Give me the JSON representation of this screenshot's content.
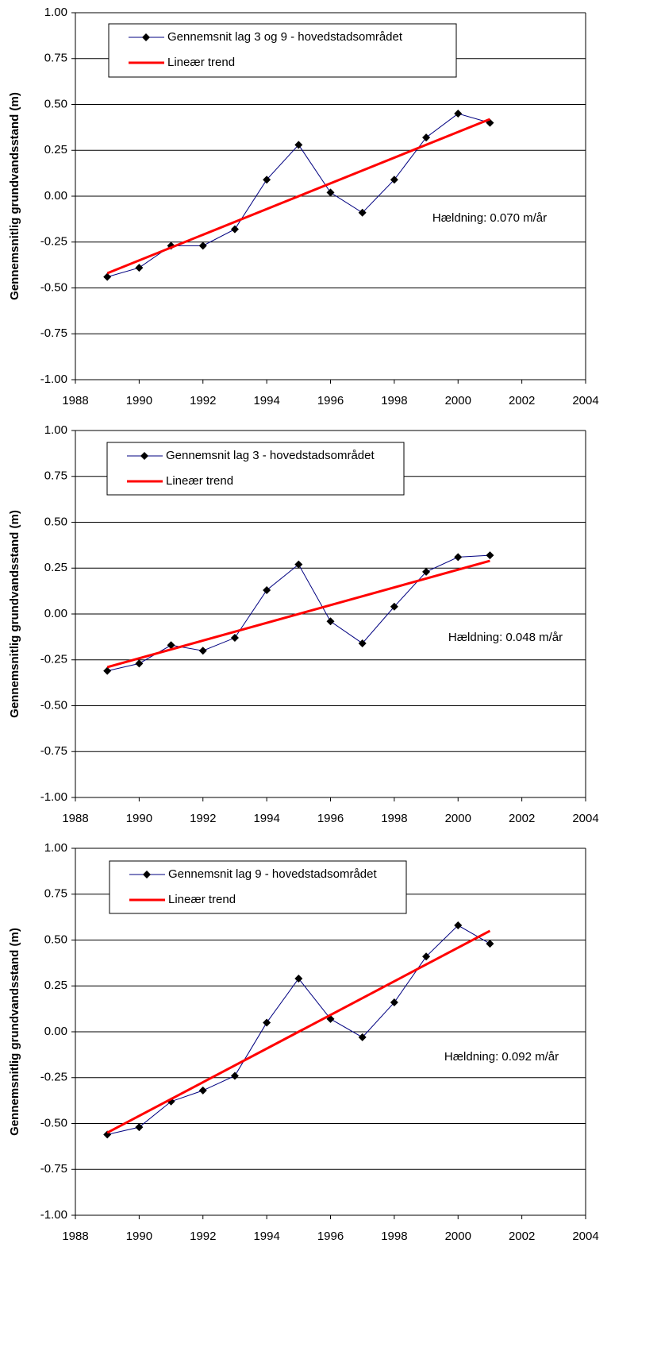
{
  "chart_data": [
    {
      "type": "line",
      "ylabel": "Gennemsnitlig grundvandsstand (m)",
      "annotation": "Hældning: 0.070 m/år",
      "xlim": [
        1988,
        2004
      ],
      "xticks": [
        1988,
        1990,
        1992,
        1994,
        1996,
        1998,
        2000,
        2002,
        2004
      ],
      "ylim": [
        -1,
        1
      ],
      "yticks": [
        {
          "value": -1,
          "label": "-1.00"
        },
        {
          "value": -0.75,
          "label": "-0.75"
        },
        {
          "value": -0.5,
          "label": "-0.50"
        },
        {
          "value": -0.25,
          "label": "-0.25"
        },
        {
          "value": 0,
          "label": "0.00"
        },
        {
          "value": 0.25,
          "label": "0.25"
        },
        {
          "value": 0.5,
          "label": "0.50"
        },
        {
          "value": 0.75,
          "label": "0.75"
        },
        {
          "value": 1,
          "label": "1.00"
        }
      ],
      "grid": true,
      "series": [
        {
          "name": "Gennemsnit lag 3 og 9 - hovedstadsområdet",
          "color": "#000080",
          "marker": "diamond",
          "x": [
            1989,
            1990,
            1991,
            1992,
            1993,
            1994,
            1995,
            1996,
            1997,
            1998,
            1999,
            2000,
            2001
          ],
          "values": [
            -0.44,
            -0.39,
            -0.27,
            -0.27,
            -0.18,
            0.09,
            0.28,
            0.02,
            -0.09,
            0.09,
            0.32,
            0.45,
            0.4
          ]
        },
        {
          "name": "Lineær trend",
          "color": "#ff0000",
          "x": [
            1989,
            2001
          ],
          "values": [
            -0.42,
            0.42
          ]
        }
      ]
    },
    {
      "type": "line",
      "ylabel": "Gennemsnitlig grundvandsstand (m)",
      "annotation": "Hældning: 0.048 m/år",
      "xlim": [
        1988,
        2004
      ],
      "xticks": [
        1988,
        1990,
        1992,
        1994,
        1996,
        1998,
        2000,
        2002,
        2004
      ],
      "ylim": [
        -1,
        1
      ],
      "yticks": [
        {
          "value": -1,
          "label": "-1.00"
        },
        {
          "value": -0.75,
          "label": "-0.75"
        },
        {
          "value": -0.5,
          "label": "-0.50"
        },
        {
          "value": -0.25,
          "label": "-0.25"
        },
        {
          "value": 0,
          "label": "0.00"
        },
        {
          "value": 0.25,
          "label": "0.25"
        },
        {
          "value": 0.5,
          "label": "0.50"
        },
        {
          "value": 0.75,
          "label": "0.75"
        },
        {
          "value": 1,
          "label": "1.00"
        }
      ],
      "grid": true,
      "series": [
        {
          "name": "Gennemsnit lag 3 - hovedstadsområdet",
          "color": "#000080",
          "marker": "diamond",
          "x": [
            1989,
            1990,
            1991,
            1992,
            1993,
            1994,
            1995,
            1996,
            1997,
            1998,
            1999,
            2000,
            2001
          ],
          "values": [
            -0.31,
            -0.27,
            -0.17,
            -0.2,
            -0.13,
            0.13,
            0.27,
            -0.04,
            -0.16,
            0.04,
            0.23,
            0.31,
            0.32
          ]
        },
        {
          "name": "Lineær trend",
          "color": "#ff0000",
          "x": [
            1989,
            2001
          ],
          "values": [
            -0.29,
            0.29
          ]
        }
      ]
    },
    {
      "type": "line",
      "ylabel": "Gennemsnitlig grundvandsstand (m)",
      "annotation": "Hældning: 0.092 m/år",
      "xlim": [
        1988,
        2004
      ],
      "xticks": [
        1988,
        1990,
        1992,
        1994,
        1996,
        1998,
        2000,
        2002,
        2004
      ],
      "ylim": [
        -1,
        1
      ],
      "yticks": [
        {
          "value": -1,
          "label": "-1.00"
        },
        {
          "value": -0.75,
          "label": "-0.75"
        },
        {
          "value": -0.5,
          "label": "-0.50"
        },
        {
          "value": -0.25,
          "label": "-0.25"
        },
        {
          "value": 0,
          "label": "0.00"
        },
        {
          "value": 0.25,
          "label": "0.25"
        },
        {
          "value": 0.5,
          "label": "0.50"
        },
        {
          "value": 0.75,
          "label": "0.75"
        },
        {
          "value": 1,
          "label": "1.00"
        }
      ],
      "grid": true,
      "series": [
        {
          "name": "Gennemsnit lag 9 - hovedstadsområdet",
          "color": "#000080",
          "marker": "diamond",
          "x": [
            1989,
            1990,
            1991,
            1992,
            1993,
            1994,
            1995,
            1996,
            1997,
            1998,
            1999,
            2000,
            2001
          ],
          "values": [
            -0.56,
            -0.52,
            -0.38,
            -0.32,
            -0.24,
            0.05,
            0.29,
            0.07,
            -0.03,
            0.16,
            0.41,
            0.58,
            0.48
          ]
        },
        {
          "name": "Lineær trend",
          "color": "#ff0000",
          "x": [
            1989,
            2001
          ],
          "values": [
            -0.55,
            0.55
          ]
        }
      ]
    }
  ]
}
